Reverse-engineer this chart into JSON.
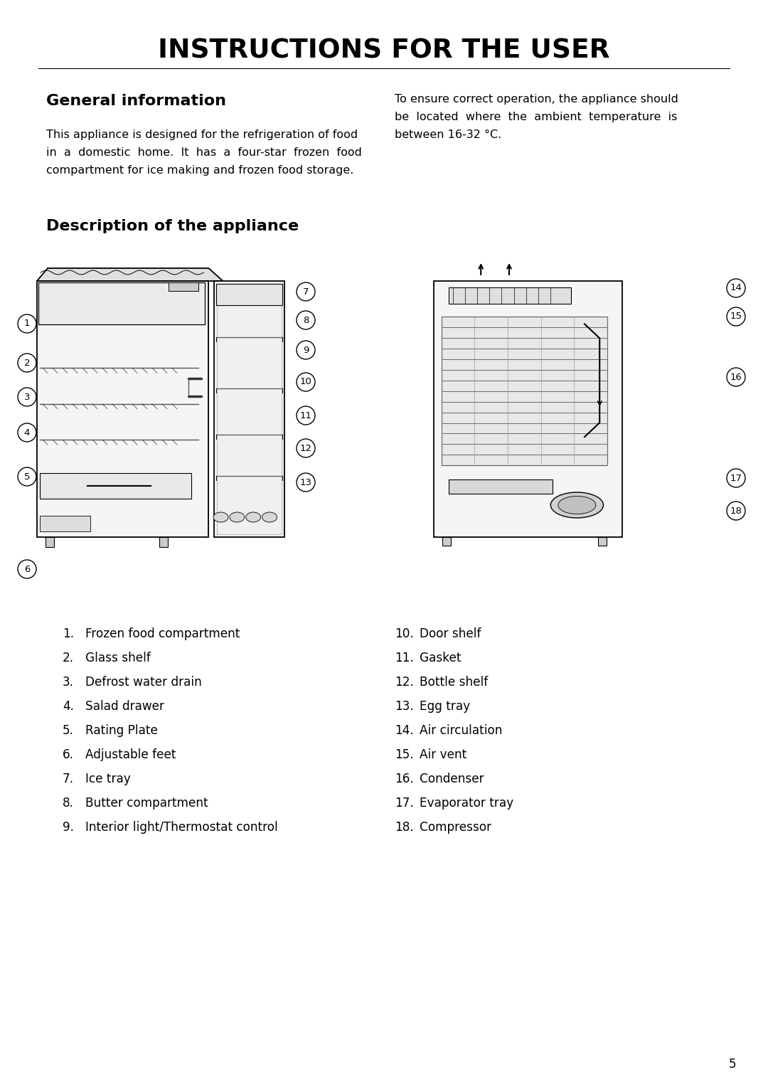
{
  "title": "INSTRUCTIONS FOR THE USER",
  "section1_heading": "General information",
  "section2_heading": "Description of the appliance",
  "left_col_text_line1": "This appliance is designed for the refrigeration of food",
  "left_col_text_line2": "in  a  domestic  home.  It  has  a  four-star  frozen  food",
  "left_col_text_line3": "compartment for ice making and frozen food storage.",
  "right_col_text_line1": "To ensure correct operation, the appliance should",
  "right_col_text_line2": "be  located  where  the  ambient  temperature  is",
  "right_col_text_line3": "between 16-32 °C.",
  "items_left": [
    [
      "1.",
      "Frozen food compartment"
    ],
    [
      "2.",
      "Glass shelf"
    ],
    [
      "3.",
      "Defrost water drain"
    ],
    [
      "4.",
      "Salad drawer"
    ],
    [
      "5.",
      "Rating Plate"
    ],
    [
      "6.",
      "Adjustable feet"
    ],
    [
      "7.",
      "Ice tray"
    ],
    [
      "8.",
      "Butter compartment"
    ],
    [
      "9.",
      "Interior light/Thermostat control"
    ]
  ],
  "items_right": [
    [
      "10.",
      "Door shelf"
    ],
    [
      "11.",
      "Gasket"
    ],
    [
      "12.",
      "Bottle shelf"
    ],
    [
      "13.",
      "Egg tray"
    ],
    [
      "14.",
      "Air circulation"
    ],
    [
      "15.",
      "Air vent"
    ],
    [
      "16.",
      "Condenser"
    ],
    [
      "17.",
      "Evaporator tray"
    ],
    [
      "18.",
      "Compressor"
    ]
  ],
  "page_number": "5",
  "bg_color": "#ffffff",
  "text_color": "#000000"
}
